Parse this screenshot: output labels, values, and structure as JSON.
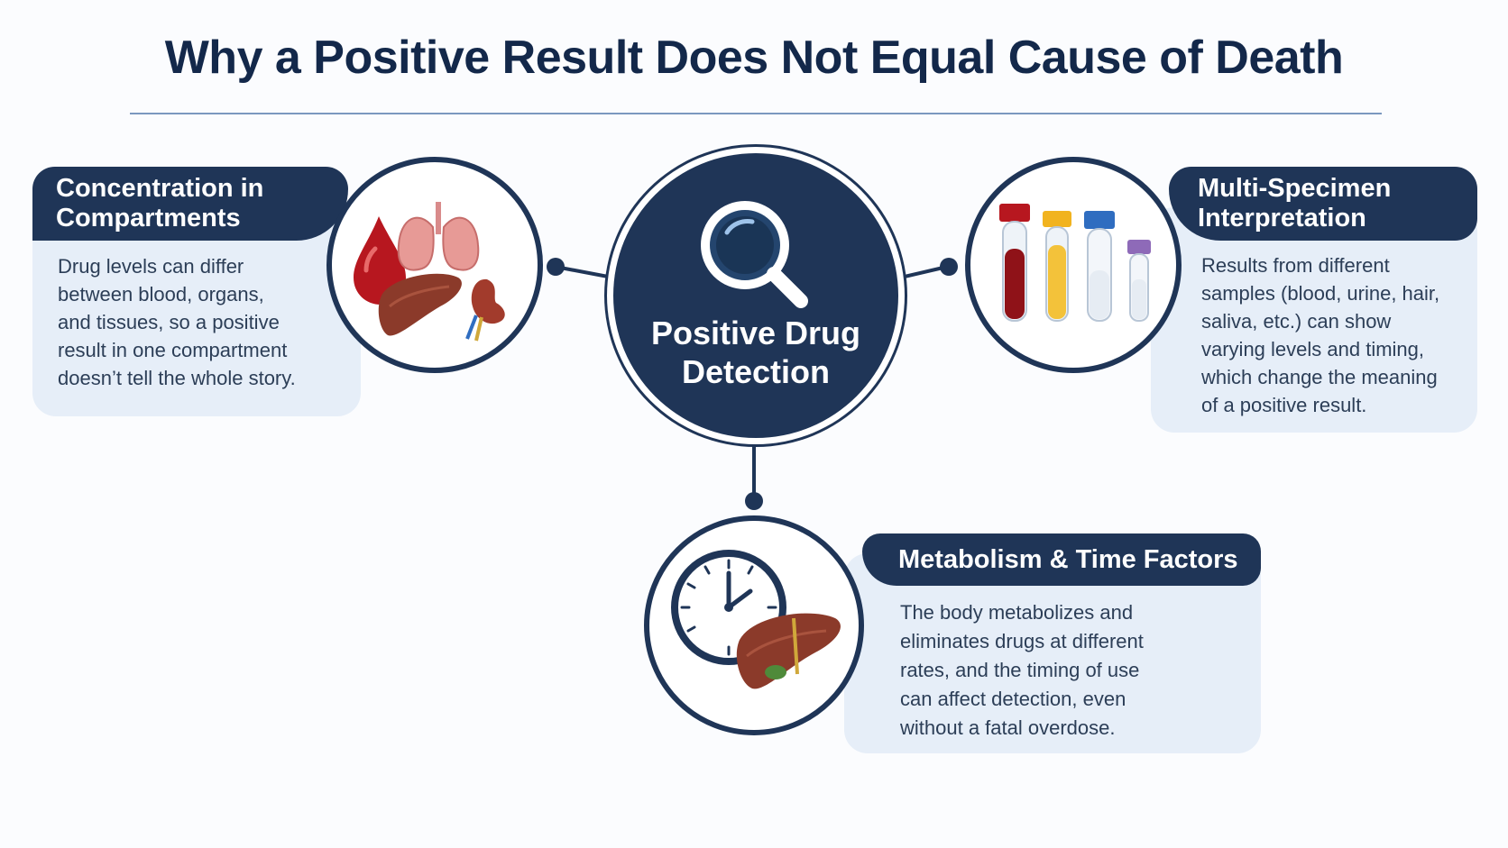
{
  "title": "Why a Positive Result Does Not Equal Cause of Death",
  "center": {
    "label": "Positive Drug\nDetection",
    "icon": "magnifier-icon"
  },
  "nodes": [
    {
      "heading": "Concentration in\nCompartments",
      "text": "Drug levels can differ\nbetween blood, organs,\nand tissues, so a positive\nresult in one compartment\ndoesn’t tell the whole story.",
      "icon": "organs-icon"
    },
    {
      "heading": "Multi-Specimen\nInterpretation",
      "text": "Results from different\nsamples (blood, urine, hair,\nsaliva, etc.) can show\nvarying levels and timing,\nwhich change the meaning\nof a positive result.",
      "icon": "test-tubes-icon"
    },
    {
      "heading": "Metabolism & Time Factors",
      "text": "The body metabolizes and\neliminates drugs at different\nrates, and the timing of use\ncan affect detection, even\nwithout a fatal overdose.",
      "icon": "clock-liver-icon"
    }
  ],
  "colors": {
    "navy": "#1f3557",
    "card_bg": "#e6eef8",
    "blood_red": "#b7171f",
    "liver_brown": "#8b3a2a",
    "tube_yellow": "#f1b31f",
    "tube_blue": "#2f6dc0",
    "tube_purple": "#8e6ab8"
  }
}
